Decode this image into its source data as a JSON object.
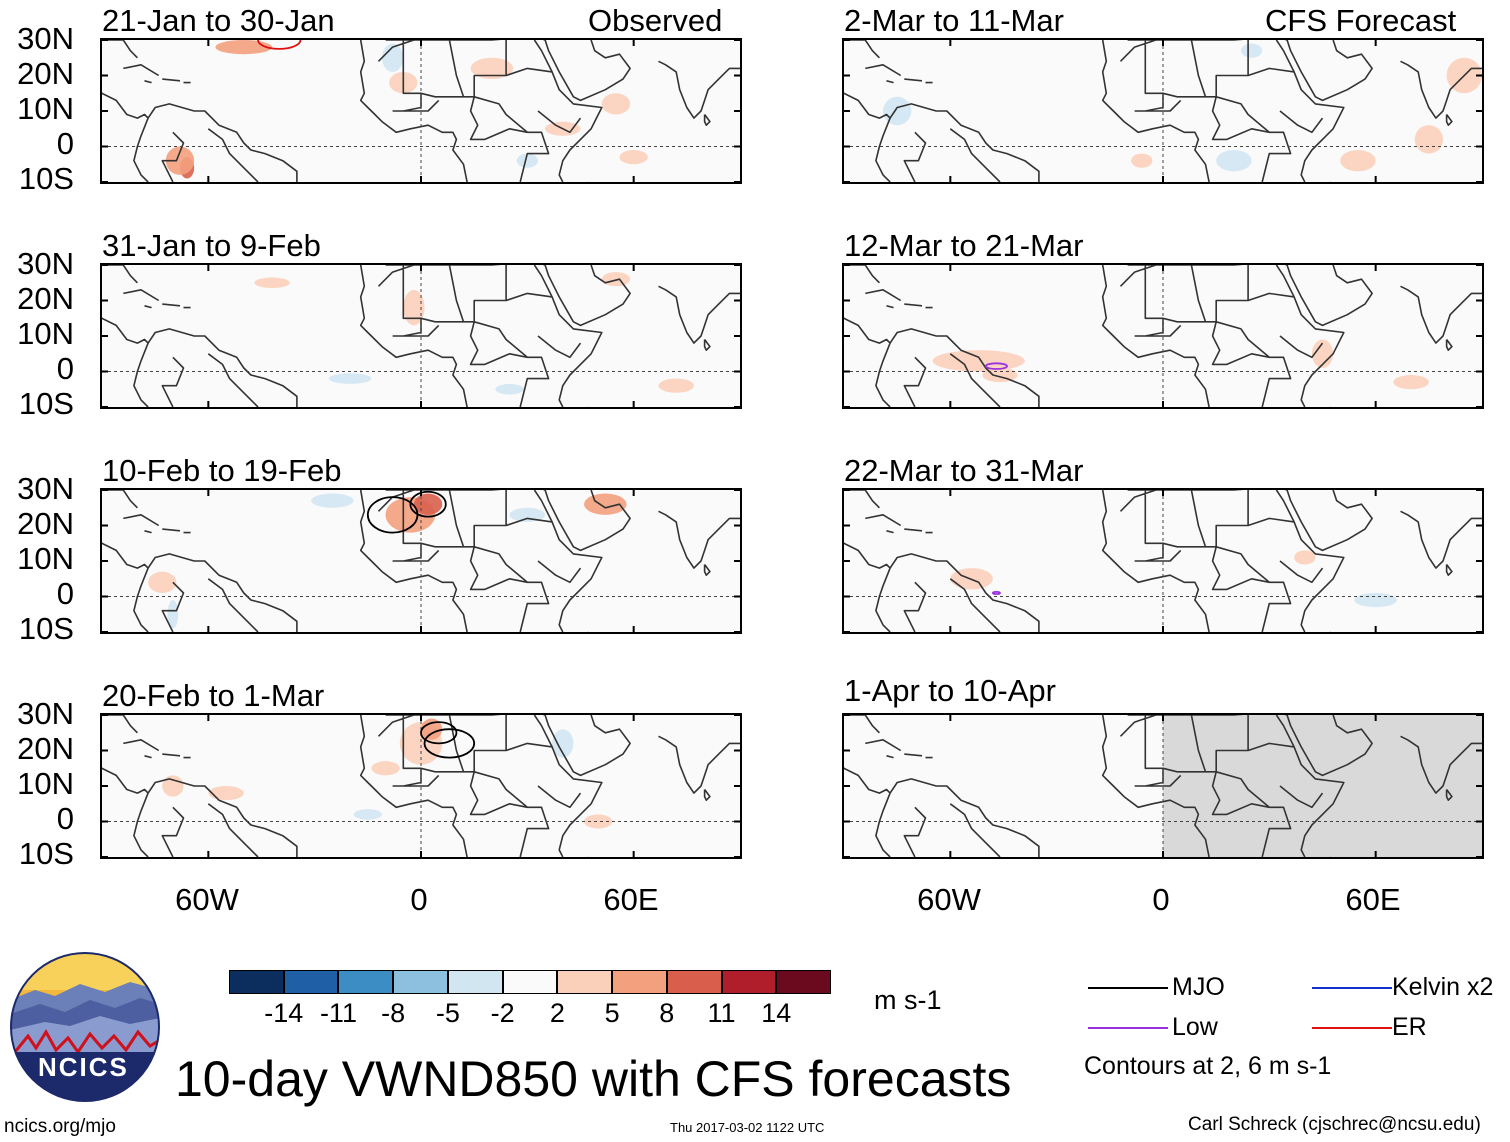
{
  "header": {
    "left_tag": "Observed",
    "right_tag": "CFS Forecast"
  },
  "panels": {
    "left": [
      {
        "title": "21-Jan to 30-Jan"
      },
      {
        "title": "31-Jan to 9-Feb"
      },
      {
        "title": "10-Feb to 19-Feb"
      },
      {
        "title": "20-Feb to 1-Mar"
      }
    ],
    "right": [
      {
        "title": "2-Mar to 11-Mar"
      },
      {
        "title": "12-Mar to 21-Mar"
      },
      {
        "title": "22-Mar to 31-Mar"
      },
      {
        "title": "1-Apr to 10-Apr"
      }
    ]
  },
  "axes": {
    "lat_labels": [
      "30N",
      "20N",
      "10N",
      "0",
      "10S"
    ],
    "lon_labels": [
      "60W",
      "0",
      "60E"
    ]
  },
  "colorbar": {
    "ticks": [
      "-14",
      "-11",
      "-8",
      "-5",
      "-2",
      "2",
      "5",
      "8",
      "11",
      "14"
    ],
    "colors": [
      "#0b2e5e",
      "#1f5fa6",
      "#3c8dc4",
      "#8dc0de",
      "#d2e6f2",
      "#fafafa",
      "#fbd0bb",
      "#f3a07e",
      "#d95f4c",
      "#b01e2c",
      "#6b0a1e"
    ],
    "unit": "m s-1"
  },
  "legend": {
    "items": [
      {
        "label": "MJO",
        "color": "#000000"
      },
      {
        "label": "Kelvin x2",
        "color": "#1030d0"
      },
      {
        "label": "Low",
        "color": "#9b30e0"
      },
      {
        "label": "ER",
        "color": "#e01010"
      }
    ],
    "contours_note": "Contours at 2, 6 m s-1"
  },
  "title": "10-day VWND850 with CFS forecasts",
  "logo": {
    "text": "NCICS"
  },
  "footer": {
    "url": "ncics.org/mjo",
    "timestamp": "Thu 2017-03-02 1122 UTC",
    "credit": "Carl Schreck (cjschrec@ncsu.edu)"
  }
}
